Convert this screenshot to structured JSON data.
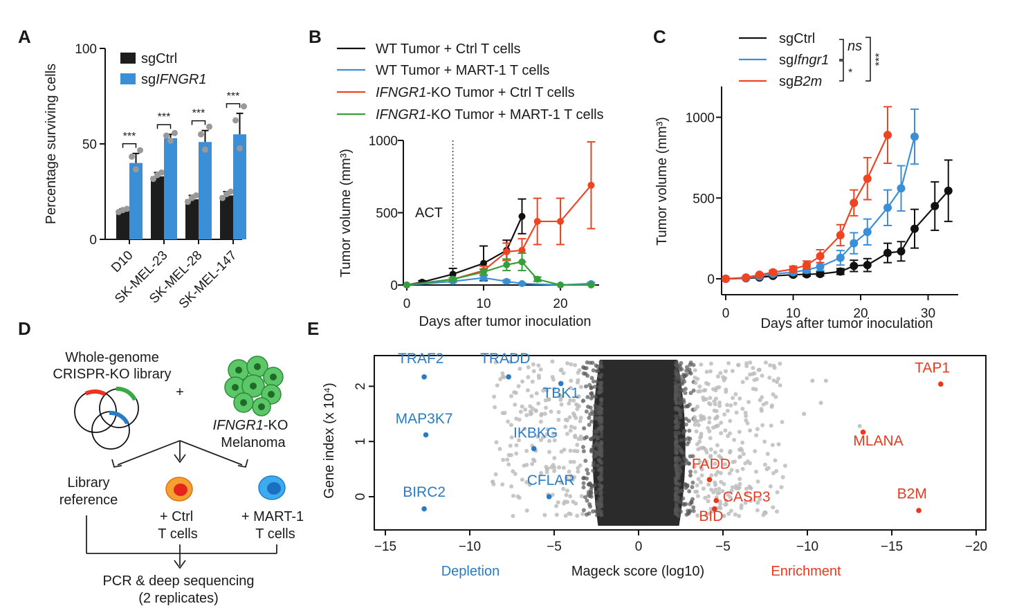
{
  "colors": {
    "black": "#111111",
    "blue": "#3b8fd6",
    "red": "#ee4422",
    "green": "#34a03c",
    "grey": "#8a8a8a",
    "dark_cloud": "#2b2b2b",
    "depletion": "#2a7bc4",
    "enrichment": "#e8391f"
  },
  "panels": {
    "A": {
      "letter": "A",
      "ylabel": "Percentage surviving cells",
      "yticks": [
        "0",
        "50",
        "100"
      ],
      "legend": [
        {
          "label": "sgCtrl",
          "italic": ""
        },
        {
          "label": "sg",
          "italic": "IFNGR1"
        }
      ],
      "significance": [
        "***",
        "***",
        "***",
        "***"
      ]
    },
    "B": {
      "letter": "B",
      "ylabel": "Tumor volume (mm³)",
      "xlabel": "Days after tumor inoculation",
      "annotation": "ACT",
      "xticks": [
        "0",
        "10",
        "20"
      ],
      "yticks": [
        "0",
        "500",
        "1000"
      ],
      "legend": [
        {
          "prefix": "",
          "italic": "",
          "suffix": "WT Tumor + Ctrl T cells"
        },
        {
          "prefix": "",
          "italic": "",
          "suffix": "WT Tumor + MART-1 T cells"
        },
        {
          "prefix": "",
          "italic": "IFNGR1",
          "suffix": "-KO Tumor + Ctrl T cells"
        },
        {
          "prefix": "",
          "italic": "IFNGR1",
          "suffix": "-KO Tumor + MART-1 T cells"
        }
      ]
    },
    "C": {
      "letter": "C",
      "ylabel": "Tumor volume (mm³)",
      "xlabel": "Days after tumor inoculation",
      "xticks": [
        "0",
        "10",
        "20",
        "30"
      ],
      "yticks": [
        "0",
        "500",
        "1000"
      ],
      "legend": [
        {
          "prefix": "sgCtrl",
          "italic": ""
        },
        {
          "prefix": "sg",
          "italic": "Ifngr1"
        },
        {
          "prefix": "sg",
          "italic": "B2m"
        }
      ],
      "sig_ns": "ns",
      "sig_star": "*",
      "sig_three": "***"
    },
    "D": {
      "letter": "D",
      "library_title_1": "Whole-genome",
      "library_title_2": "CRISPR-KO library",
      "plus": "+",
      "cell_label_italic": "IFNGR1",
      "cell_label_1": "-KO",
      "cell_label_2": "Melanoma",
      "branch_left_1": "Library",
      "branch_left_2": "reference",
      "branch_mid_1": "+ Ctrl",
      "branch_mid_2": "T cells",
      "branch_right_1": "+ MART-1",
      "branch_right_2": "T cells",
      "bottom_1": "PCR & deep sequencing",
      "bottom_2": "(2 replicates)"
    },
    "E": {
      "letter": "E",
      "ylabel": "Gene index (x 10⁴)",
      "xlabel": "Mageck score (log10)",
      "depletion": "Depletion",
      "enrichment": "Enrichment",
      "xticks": [
        "−15",
        "−10",
        "−5",
        "0",
        "−5",
        "−10",
        "−15",
        "−20"
      ],
      "yticks": [
        "0",
        "1",
        "2"
      ]
    }
  },
  "chart_data": [
    {
      "id": "A",
      "type": "bar",
      "title": "",
      "xlabel": "",
      "ylabel": "Percentage surviving cells",
      "ylim": [
        0,
        100
      ],
      "categories": [
        "D10",
        "SK-MEL-23",
        "SK-MEL-28",
        "SK-MEL-147"
      ],
      "series": [
        {
          "name": "sgCtrl",
          "values": [
            15,
            33,
            21,
            23
          ],
          "errors": [
            1,
            2,
            2,
            2
          ]
        },
        {
          "name": "sgIFNGR1",
          "values": [
            40,
            53,
            51,
            55
          ],
          "errors": [
            5,
            2,
            6,
            11
          ]
        }
      ],
      "annotations": [
        "***",
        "***",
        "***",
        "***"
      ]
    },
    {
      "id": "B",
      "type": "line",
      "title": "",
      "xlabel": "Days after tumor inoculation",
      "ylabel": "Tumor volume (mm3)",
      "xlim": [
        -1,
        25
      ],
      "ylim": [
        0,
        1000
      ],
      "annotation": "ACT at day 6",
      "series": [
        {
          "name": "WT Tumor + Ctrl T cells",
          "x": [
            0,
            2,
            6,
            10,
            13,
            15
          ],
          "values": [
            0,
            20,
            75,
            150,
            240,
            475
          ],
          "errors": [
            0,
            10,
            40,
            120,
            70,
            120
          ]
        },
        {
          "name": "WT Tumor + MART-1 T cells",
          "x": [
            0,
            6,
            10,
            13,
            15,
            20,
            24
          ],
          "values": [
            0,
            25,
            50,
            25,
            10,
            0,
            10
          ],
          "errors": [
            0,
            8,
            15,
            10,
            5,
            3,
            8
          ]
        },
        {
          "name": "IFNGR1-KO Tumor + Ctrl T cells",
          "x": [
            0,
            6,
            10,
            13,
            15,
            17,
            20,
            24
          ],
          "values": [
            0,
            40,
            100,
            230,
            240,
            440,
            440,
            690
          ],
          "errors": [
            0,
            10,
            30,
            60,
            80,
            160,
            160,
            300
          ]
        },
        {
          "name": "IFNGR1-KO Tumor + MART-1 T cells",
          "x": [
            0,
            6,
            10,
            13,
            15,
            17,
            20,
            24
          ],
          "values": [
            0,
            40,
            90,
            140,
            160,
            40,
            0,
            0
          ],
          "errors": [
            0,
            10,
            20,
            40,
            60,
            15,
            3,
            3
          ]
        }
      ]
    },
    {
      "id": "C",
      "type": "line",
      "title": "",
      "xlabel": "Days after tumor inoculation",
      "ylabel": "Tumor volume (mm3)",
      "xlim": [
        -1,
        35
      ],
      "ylim": [
        0,
        1200
      ],
      "series": [
        {
          "name": "sgCtrl",
          "x": [
            0,
            3,
            5,
            7,
            10,
            12,
            14,
            17,
            19,
            21,
            24,
            26,
            28,
            31,
            33
          ],
          "values": [
            0,
            3,
            8,
            18,
            25,
            28,
            30,
            45,
            80,
            85,
            160,
            170,
            310,
            450,
            545
          ],
          "errors": [
            0,
            2,
            4,
            8,
            10,
            12,
            12,
            18,
            35,
            40,
            60,
            60,
            120,
            150,
            190
          ]
        },
        {
          "name": "sgIfngr1",
          "x": [
            0,
            3,
            5,
            7,
            10,
            12,
            14,
            17,
            19,
            21,
            24,
            26,
            28
          ],
          "values": [
            0,
            5,
            15,
            30,
            40,
            55,
            75,
            130,
            220,
            290,
            440,
            560,
            880
          ],
          "errors": [
            0,
            3,
            6,
            10,
            12,
            18,
            25,
            45,
            65,
            80,
            110,
            140,
            170
          ]
        },
        {
          "name": "sgB2m",
          "x": [
            0,
            3,
            5,
            7,
            10,
            12,
            14,
            17,
            19,
            21,
            24
          ],
          "values": [
            0,
            8,
            25,
            40,
            60,
            85,
            140,
            270,
            470,
            620,
            890
          ],
          "errors": [
            0,
            4,
            8,
            12,
            18,
            25,
            40,
            65,
            80,
            130,
            175
          ]
        }
      ],
      "annotations": [
        "ns (sgCtrl vs sgIfngr1)",
        "* (sgIfngr1 vs sgB2m)",
        "*** (sgCtrl vs sgB2m)"
      ]
    },
    {
      "id": "E",
      "type": "scatter",
      "title": "",
      "xlabel": "Mageck score (log10)",
      "ylabel": "Gene index (x 10^4)",
      "xlim": [
        -16.5,
        21
      ],
      "ylim": [
        -0.4,
        2.5
      ],
      "note": "negative scores = depletion, positive = enrichment (axis labels shown as magnitude)",
      "labeled_points": [
        {
          "gene": "TRAF2",
          "x": -12.7,
          "y": 2.17,
          "group": "depletion"
        },
        {
          "gene": "TRADD",
          "x": -7.7,
          "y": 2.17,
          "group": "depletion"
        },
        {
          "gene": "TBK1",
          "x": -4.6,
          "y": 2.05,
          "group": "depletion"
        },
        {
          "gene": "MAP3K7",
          "x": -12.6,
          "y": 1.12,
          "group": "depletion"
        },
        {
          "gene": "IKBKG",
          "x": -6.2,
          "y": 0.87,
          "group": "depletion"
        },
        {
          "gene": "CFLAR",
          "x": -5.3,
          "y": 0.0,
          "group": "depletion"
        },
        {
          "gene": "BIRC2",
          "x": -12.7,
          "y": -0.22,
          "group": "depletion"
        },
        {
          "gene": "TAP1",
          "x": 17.9,
          "y": 2.04,
          "group": "enrichment"
        },
        {
          "gene": "MLANA",
          "x": 13.3,
          "y": 1.17,
          "group": "enrichment"
        },
        {
          "gene": "FADD",
          "x": 4.2,
          "y": 0.31,
          "group": "enrichment"
        },
        {
          "gene": "CASP3",
          "x": 4.6,
          "y": -0.07,
          "group": "enrichment"
        },
        {
          "gene": "BID",
          "x": 4.5,
          "y": -0.22,
          "group": "enrichment"
        },
        {
          "gene": "B2M",
          "x": 16.6,
          "y": -0.25,
          "group": "enrichment"
        }
      ]
    }
  ]
}
